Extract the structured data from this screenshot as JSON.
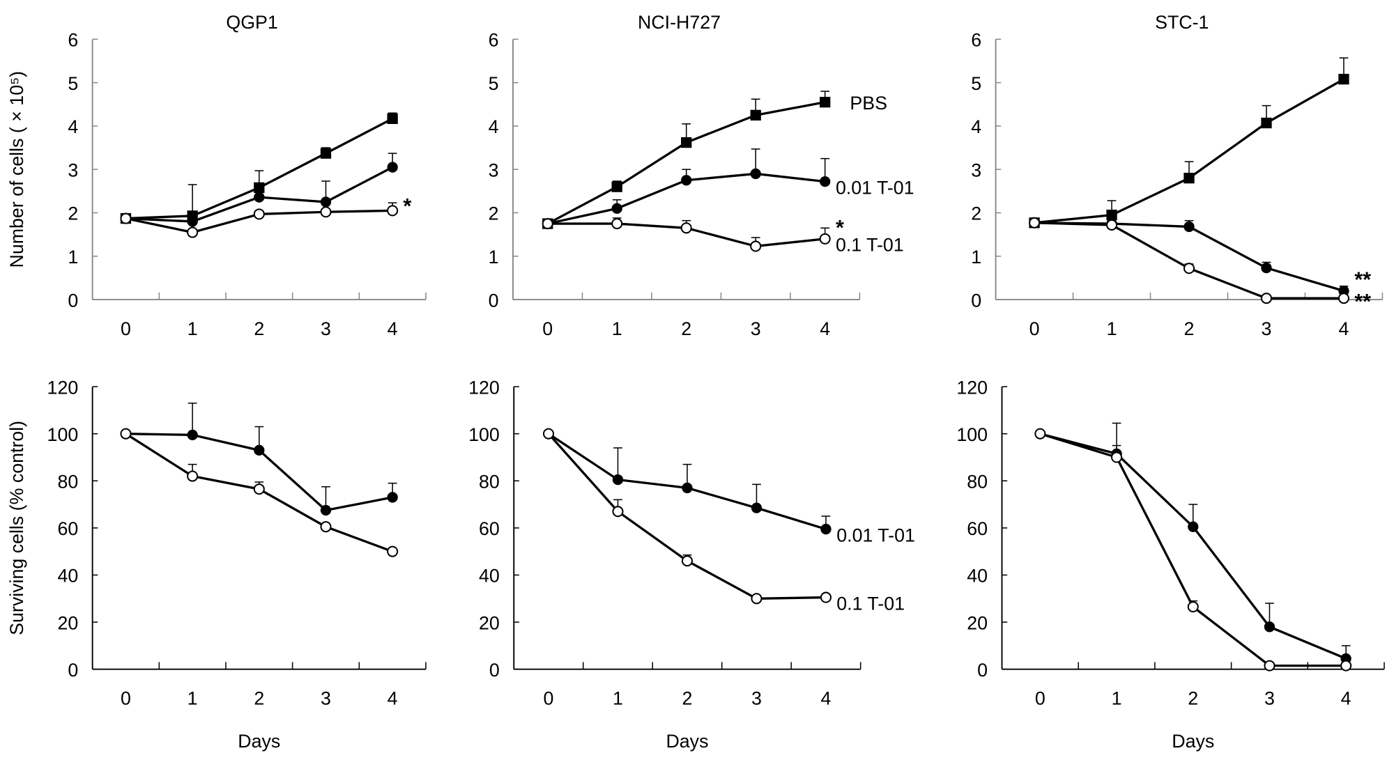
{
  "chart_data": [
    {
      "type": "line",
      "title": "QGP1",
      "xlabel": "",
      "ylabel": "Number of cells ( × 10⁵)",
      "categories": [
        "0",
        "1",
        "2",
        "3",
        "4"
      ],
      "ylim": [
        0,
        6
      ],
      "yticks": [
        0,
        1,
        2,
        3,
        4,
        5,
        6
      ],
      "grid": false,
      "series": [
        {
          "marker": "filled-square",
          "values": [
            1.87,
            1.93,
            2.58,
            3.37,
            4.17
          ],
          "error_bar_top": [
            null,
            2.65,
            2.97,
            3.5,
            4.3
          ]
        },
        {
          "marker": "filled-circle",
          "values": [
            1.87,
            1.8,
            2.36,
            2.25,
            3.05
          ],
          "error_bar_top": [
            null,
            null,
            null,
            2.73,
            3.37
          ]
        },
        {
          "marker": "open-circle",
          "values": [
            1.87,
            1.55,
            1.97,
            2.02,
            2.05
          ],
          "error_bar_top": [
            null,
            null,
            null,
            null,
            2.23
          ]
        }
      ],
      "annotations": [
        {
          "text": "*",
          "category": "4",
          "value": 2.2
        }
      ]
    },
    {
      "type": "line",
      "title": "NCI-H727",
      "xlabel": "",
      "ylabel": "",
      "categories": [
        "0",
        "1",
        "2",
        "3",
        "4"
      ],
      "ylim": [
        0,
        6
      ],
      "yticks": [
        0,
        1,
        2,
        3,
        4,
        5,
        6
      ],
      "grid": false,
      "series": [
        {
          "name": "PBS",
          "marker": "filled-square",
          "values": [
            1.75,
            2.6,
            3.62,
            4.25,
            4.55
          ],
          "error_bar_top": [
            null,
            2.73,
            4.05,
            4.62,
            4.8
          ]
        },
        {
          "name": "0.01 T-01",
          "marker": "filled-circle",
          "values": [
            1.75,
            2.1,
            2.75,
            2.9,
            2.72
          ],
          "error_bar_top": [
            null,
            2.3,
            3.0,
            3.47,
            3.25
          ]
        },
        {
          "name": "0.1 T-01",
          "marker": "open-circle",
          "values": [
            1.75,
            1.75,
            1.65,
            1.23,
            1.4
          ],
          "error_bar_top": [
            null,
            1.88,
            1.82,
            1.43,
            1.65
          ]
        }
      ],
      "annotations": [
        {
          "text": "*",
          "category": "4",
          "value": 1.7
        }
      ]
    },
    {
      "type": "line",
      "title": "STC-1",
      "xlabel": "",
      "ylabel": "",
      "categories": [
        "0",
        "1",
        "2",
        "3",
        "4"
      ],
      "ylim": [
        0,
        6
      ],
      "yticks": [
        0,
        1,
        2,
        3,
        4,
        5,
        6
      ],
      "grid": false,
      "series": [
        {
          "marker": "filled-square",
          "values": [
            1.77,
            1.95,
            2.8,
            4.07,
            5.08
          ],
          "error_bar_top": [
            null,
            2.28,
            3.18,
            4.47,
            5.57
          ]
        },
        {
          "marker": "filled-circle",
          "values": [
            1.77,
            1.75,
            1.68,
            0.73,
            0.2
          ],
          "error_bar_top": [
            null,
            null,
            1.82,
            0.86,
            0.31
          ]
        },
        {
          "marker": "open-circle",
          "values": [
            1.77,
            1.72,
            0.72,
            0.03,
            0.03
          ],
          "error_bar_top": [
            null,
            null,
            0.82,
            null,
            null
          ]
        }
      ],
      "annotations": [
        {
          "text": "**",
          "category": "4",
          "value": 0.5
        },
        {
          "text": "**",
          "category": "4",
          "value": 0.0
        }
      ]
    },
    {
      "type": "line",
      "title": "",
      "xlabel": "Days",
      "ylabel": "Surviving cells (% control)",
      "categories": [
        "0",
        "1",
        "2",
        "3",
        "4"
      ],
      "ylim": [
        0,
        120
      ],
      "yticks": [
        0,
        20,
        40,
        60,
        80,
        100,
        120
      ],
      "grid": false,
      "series": [
        {
          "marker": "filled-circle",
          "values": [
            100,
            99.5,
            93,
            67.5,
            73
          ],
          "error_bar_top": [
            null,
            113,
            103,
            77.5,
            79
          ]
        },
        {
          "marker": "open-circle",
          "values": [
            100,
            82,
            76.5,
            60.5,
            50
          ],
          "error_bar_top": [
            null,
            87,
            79.5,
            null,
            null
          ]
        }
      ],
      "annotations": []
    },
    {
      "type": "line",
      "title": "",
      "xlabel": "Days",
      "ylabel": "",
      "categories": [
        "0",
        "1",
        "2",
        "3",
        "4"
      ],
      "ylim": [
        0,
        120
      ],
      "yticks": [
        0,
        20,
        40,
        60,
        80,
        100,
        120
      ],
      "grid": false,
      "series": [
        {
          "name": "0.01 T-01",
          "marker": "filled-circle",
          "values": [
            100,
            80.5,
            77,
            68.5,
            59.5
          ],
          "error_bar_top": [
            null,
            94,
            87,
            78.5,
            65
          ]
        },
        {
          "name": "0.1 T-01",
          "marker": "open-circle",
          "values": [
            100,
            67,
            46,
            30,
            30.5
          ],
          "error_bar_top": [
            null,
            72,
            48.5,
            null,
            31.5
          ]
        }
      ],
      "annotations": []
    },
    {
      "type": "line",
      "title": "",
      "xlabel": "Days",
      "ylabel": "",
      "categories": [
        "0",
        "1",
        "2",
        "3",
        "4"
      ],
      "ylim": [
        0,
        120
      ],
      "yticks": [
        0,
        20,
        40,
        60,
        80,
        100,
        120
      ],
      "grid": false,
      "series": [
        {
          "marker": "filled-circle",
          "values": [
            100,
            91.5,
            60.5,
            18,
            4.5
          ],
          "error_bar_top": [
            null,
            104.5,
            70,
            28,
            10
          ]
        },
        {
          "marker": "open-circle",
          "values": [
            100,
            90,
            26.5,
            1.5,
            1.5
          ],
          "error_bar_top": [
            null,
            95,
            29,
            null,
            null
          ]
        }
      ],
      "annotations": []
    }
  ]
}
